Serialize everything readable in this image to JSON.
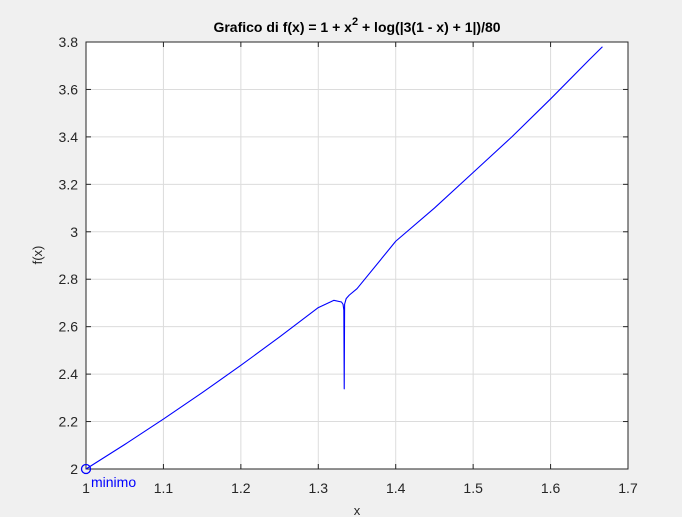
{
  "window": {
    "background": "#f0f0f0"
  },
  "chart_data": {
    "type": "line",
    "title_main": "Grafico di f(x) = 1 + x",
    "title_sup": "2",
    "title_tail": " + log(|3(1 - x) + 1|)/80",
    "xlabel": "x",
    "ylabel": "f(x)",
    "xlim": [
      1,
      1.7
    ],
    "ylim": [
      2,
      3.8
    ],
    "x_ticks": [
      "1",
      "1.1",
      "1.2",
      "1.3",
      "1.4",
      "1.5",
      "1.6",
      "1.7"
    ],
    "y_ticks": [
      "2",
      "2.2",
      "2.4",
      "2.6",
      "2.8",
      "3",
      "3.2",
      "3.4",
      "3.6",
      "3.8"
    ],
    "grid": true,
    "series": [
      {
        "color": "#0000ff",
        "x": [
          1.0,
          1.05,
          1.1,
          1.15,
          1.2,
          1.25,
          1.3,
          1.32,
          1.33,
          1.332,
          1.333,
          1.3335,
          1.334,
          1.336,
          1.34,
          1.35,
          1.4,
          1.45,
          1.5,
          1.55,
          1.6,
          1.65,
          1.667
        ],
        "y": [
          2.0,
          2.1032,
          2.2104,
          2.3216,
          2.4369,
          2.5565,
          2.6804,
          2.711,
          2.704,
          2.694,
          2.67,
          2.338,
          2.695,
          2.718,
          2.733,
          2.76,
          2.96,
          3.1,
          3.25,
          3.4,
          3.56,
          3.725,
          3.78
        ]
      }
    ],
    "annotations": [
      {
        "label": "minimo",
        "x": 1.0,
        "y": 2.0,
        "color": "#0000ff",
        "marker": "circle"
      }
    ]
  }
}
